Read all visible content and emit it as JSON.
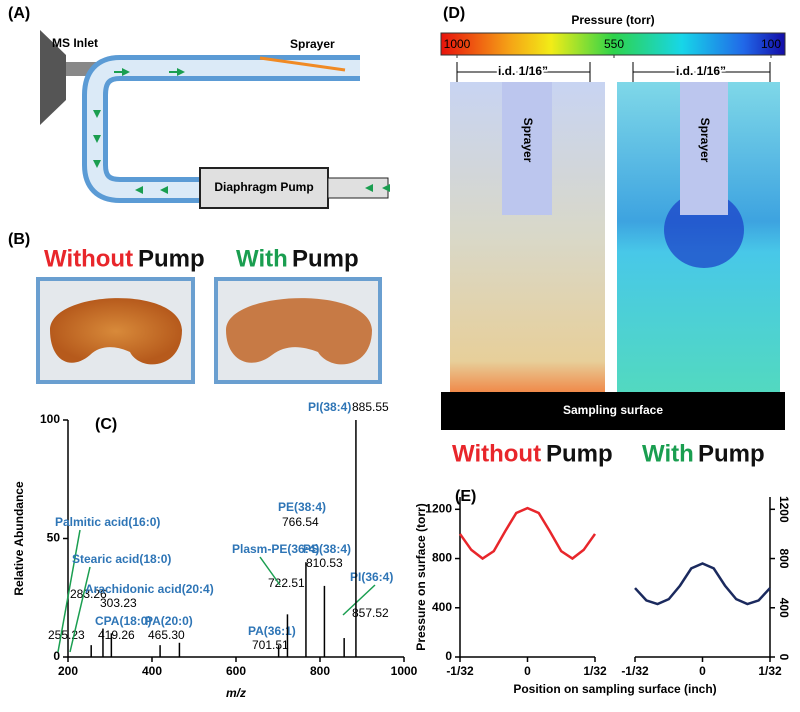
{
  "panel_a": {
    "label": "(A)",
    "ms_inlet": "MS Inlet",
    "sprayer": "Sprayer",
    "pump": "Diaphragm Pump"
  },
  "panel_b": {
    "label": "(B)",
    "left_word": "Without",
    "right_word": "With",
    "pump_word": "Pump"
  },
  "panel_c": {
    "label": "(C)"
  },
  "panel_d": {
    "label": "(D)",
    "colorbar_title": "Pressure  (torr)",
    "colorbar_lim": [
      1000,
      100
    ],
    "colorbar_ticks": [
      1000,
      550,
      100
    ],
    "id_label": "i.d. 1/16”",
    "sprayer": "Sprayer",
    "surface": "Sampling surface"
  },
  "panel_e": {
    "label": "(E)",
    "left_word": "Without",
    "right_word": "With",
    "pump_word": "Pump"
  },
  "chart_data": [
    {
      "type": "bar",
      "ylabel": "Relative Abundance",
      "xlabel": "m/z",
      "color": "#000000",
      "label_color": "#2e75b6",
      "x": [
        255.23,
        283.26,
        303.23,
        419.26,
        465.3,
        701.51,
        722.51,
        766.54,
        810.53,
        857.52,
        885.55
      ],
      "x_labels": [
        "255.23",
        "283.26",
        "303.23",
        "419.26",
        "465.30",
        "701.51",
        "722.51",
        "766.54",
        "810.53",
        "857.52",
        "885.55"
      ],
      "values": [
        5,
        12,
        10,
        5,
        6,
        5,
        18,
        40,
        30,
        8,
        100
      ],
      "labels": [
        "Palmitic acid(16:0)",
        "Stearic acid(18:0)",
        "Arachidonic acid(20:4)",
        "CPA(18:0)",
        "PA(20:0)",
        "PA(36:1)",
        "Plasm-PE(36:4)",
        "PE(38:4)",
        "PS(38:4)",
        "PI(36:4)",
        "PI(38:4)"
      ],
      "xlim": [
        200,
        1000
      ],
      "xticks": [
        200,
        400,
        600,
        800,
        1000
      ],
      "ylim": [
        0,
        100
      ],
      "yticks": [
        0,
        50,
        100
      ]
    },
    {
      "type": "line",
      "ylabel": "Pressure on surface (torr)",
      "xlabel": "Position on sampling surface (inch)",
      "x": [
        -0.03125,
        -0.026,
        -0.0208,
        -0.0156,
        -0.0104,
        -0.0052,
        0,
        0.0052,
        0.0104,
        0.0156,
        0.0208,
        0.026,
        0.03125
      ],
      "series": [
        {
          "color": "#e8262b",
          "values": [
            1000,
            870,
            800,
            860,
            1020,
            1170,
            1210,
            1170,
            1020,
            860,
            800,
            870,
            1000
          ]
        }
      ],
      "xlim": [
        -0.03125,
        0.03125
      ],
      "xticks": [
        {
          "value": -0.03125,
          "label": "-1/32"
        },
        0,
        {
          "value": 0.03125,
          "label": "1/32"
        }
      ],
      "ylim": [
        0,
        1300
      ],
      "yticks": [
        0,
        400,
        800,
        1200
      ]
    },
    {
      "type": "line",
      "x": [
        -0.03125,
        -0.026,
        -0.0208,
        -0.0156,
        -0.0104,
        -0.0052,
        0,
        0.0052,
        0.0104,
        0.0156,
        0.0208,
        0.026,
        0.03125
      ],
      "series": [
        {
          "color": "#1b2a5e",
          "values": [
            560,
            460,
            430,
            470,
            580,
            720,
            760,
            720,
            580,
            470,
            430,
            460,
            560
          ]
        }
      ],
      "xlim": [
        -0.03125,
        0.03125
      ],
      "xticks": [
        {
          "value": -0.03125,
          "label": "-1/32"
        },
        0,
        {
          "value": 0.03125,
          "label": "1/32"
        }
      ],
      "ylim": [
        0,
        1300
      ],
      "yticks": [
        0,
        400,
        800,
        1200
      ]
    }
  ]
}
